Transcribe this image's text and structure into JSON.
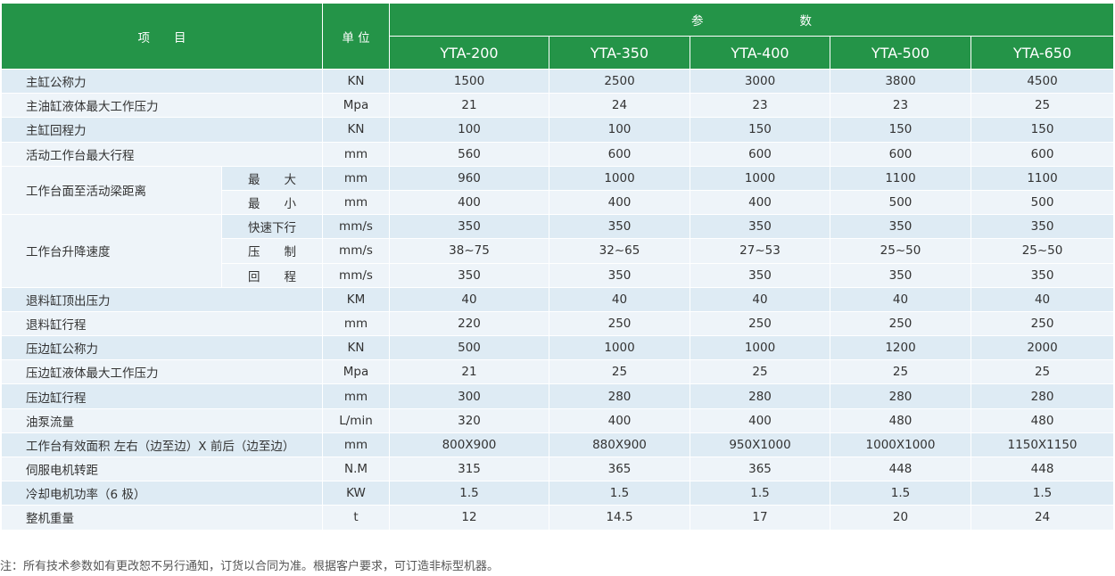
{
  "header": {
    "item_label": "项　　目",
    "unit_label": "单 位",
    "params_label": "参　　　　　　　　数",
    "models": [
      "YTA-200",
      "YTA-350",
      "YTA-400",
      "YTA-500",
      "YTA-650"
    ]
  },
  "rows": [
    {
      "label": "主缸公称力",
      "unit": "KN",
      "values": [
        "1500",
        "2500",
        "3000",
        "3800",
        "4500"
      ]
    },
    {
      "label": "主油缸液体最大工作压力",
      "unit": "Mpa",
      "values": [
        "21",
        "24",
        "23",
        "23",
        "25"
      ]
    },
    {
      "label": "主缸回程力",
      "unit": "KN",
      "values": [
        "100",
        "100",
        "150",
        "150",
        "150"
      ]
    },
    {
      "label": "活动工作台最大行程",
      "unit": "mm",
      "values": [
        "560",
        "600",
        "600",
        "600",
        "600"
      ]
    },
    {
      "label": "工作台面至活动梁距离",
      "sub": "最　　大",
      "unit": "mm",
      "values": [
        "960",
        "1000",
        "1000",
        "1100",
        "1100"
      ]
    },
    {
      "sub": "最　　小",
      "unit": "mm",
      "values": [
        "400",
        "400",
        "400",
        "500",
        "500"
      ]
    },
    {
      "label": "工作台升降速度",
      "sub": "快速下行",
      "unit": "mm/s",
      "values": [
        "350",
        "350",
        "350",
        "350",
        "350"
      ]
    },
    {
      "sub": "压　　制",
      "unit": "mm/s",
      "values": [
        "38~75",
        "32~65",
        "27~53",
        "25~50",
        "25~50"
      ]
    },
    {
      "sub": "回　　程",
      "unit": "mm/s",
      "values": [
        "350",
        "350",
        "350",
        "350",
        "350"
      ]
    },
    {
      "label": "退料缸顶出压力",
      "unit": "KM",
      "values": [
        "40",
        "40",
        "40",
        "40",
        "40"
      ]
    },
    {
      "label": "退料缸行程",
      "unit": "mm",
      "values": [
        "220",
        "250",
        "250",
        "250",
        "250"
      ]
    },
    {
      "label": "压边缸公称力",
      "unit": "KN",
      "values": [
        "500",
        "1000",
        "1000",
        "1200",
        "2000"
      ]
    },
    {
      "label": "压边缸液体最大工作压力",
      "unit": "Mpa",
      "values": [
        "21",
        "25",
        "25",
        "25",
        "25"
      ]
    },
    {
      "label": "压边缸行程",
      "unit": "mm",
      "values": [
        "300",
        "280",
        "280",
        "280",
        "280"
      ]
    },
    {
      "label": "油泵流量",
      "unit": "L/min",
      "values": [
        "320",
        "400",
        "400",
        "480",
        "480"
      ]
    },
    {
      "label": "工作台有效面积 左右（边至边）X 前后（边至边）",
      "unit": "mm",
      "values": [
        "800X900",
        "880X900",
        "950X1000",
        "1000X1000",
        "1150X1150"
      ]
    },
    {
      "label": "伺服电机转距",
      "unit": "N.M",
      "values": [
        "315",
        "365",
        "365",
        "448",
        "448"
      ]
    },
    {
      "label": "冷却电机功率（6 极）",
      "unit": "KW",
      "values": [
        "1.5",
        "1.5",
        "1.5",
        "1.5",
        "1.5"
      ]
    },
    {
      "label": "整机重量",
      "unit": "t",
      "values": [
        "12",
        "14.5",
        "17",
        "20",
        "24"
      ]
    }
  ],
  "note": "注：所有技术参数如有更改恕不另行通知，订货以合同为准。根据客户要求，可订造非标型机器。",
  "colors": {
    "header": "#249448",
    "row_odd": "#deebf4",
    "row_even": "#eef4f9"
  }
}
